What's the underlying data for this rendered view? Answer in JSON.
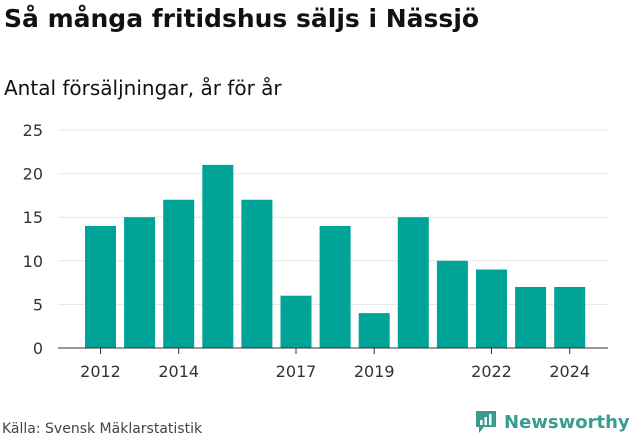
{
  "title": "Så många fritidshus säljs i Nässjö",
  "subtitle": "Antal försäljningar, år för år",
  "source": "Källa: Svensk Mäklarstatistik",
  "brand": "Newsworthy",
  "colors": {
    "bar": "#00a398",
    "grid": "#e6e6e6",
    "brand": "#3a9c8f"
  },
  "chart_data": {
    "type": "bar",
    "x": [
      2012,
      2013,
      2014,
      2015,
      2016,
      2017,
      2018,
      2019,
      2020,
      2021,
      2022,
      2023,
      2024
    ],
    "values": [
      14,
      15,
      17,
      21,
      17,
      6,
      14,
      4,
      15,
      10,
      9,
      7,
      7
    ],
    "xticks": [
      "2012",
      "2014",
      "2017",
      "2019",
      "2022",
      "2024"
    ],
    "yticks": [
      "0",
      "5",
      "10",
      "15",
      "20",
      "25"
    ],
    "ylim": [
      0,
      25
    ],
    "grid": true
  }
}
